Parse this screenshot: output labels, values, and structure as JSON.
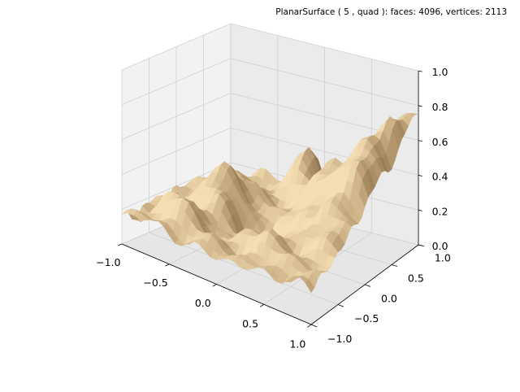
{
  "chart_data": {
    "type": "surface3d",
    "title": "PlanarSurface ( 5 , quad ):  faces: 4096,  vertices: 2113",
    "xlabel": "",
    "ylabel": "",
    "zlabel": "",
    "xlim": [
      -1.0,
      1.0
    ],
    "ylim": [
      -1.0,
      1.0
    ],
    "zlim": [
      0.0,
      1.0
    ],
    "x_ticks": [
      "−1.0",
      "−0.5",
      "0.0",
      "0.5",
      "1.0"
    ],
    "y_ticks": [
      "−1.0",
      "−0.5",
      "0.0",
      "0.5",
      "1.0"
    ],
    "z_ticks": [
      "0.0",
      "0.2",
      "0.4",
      "0.6",
      "0.8",
      "1.0"
    ],
    "faces": 4096,
    "vertices": 2113,
    "grid": true,
    "colormap": [
      "#5a4423",
      "#8f744d",
      "#c4a77d",
      "#f5deb3"
    ]
  }
}
